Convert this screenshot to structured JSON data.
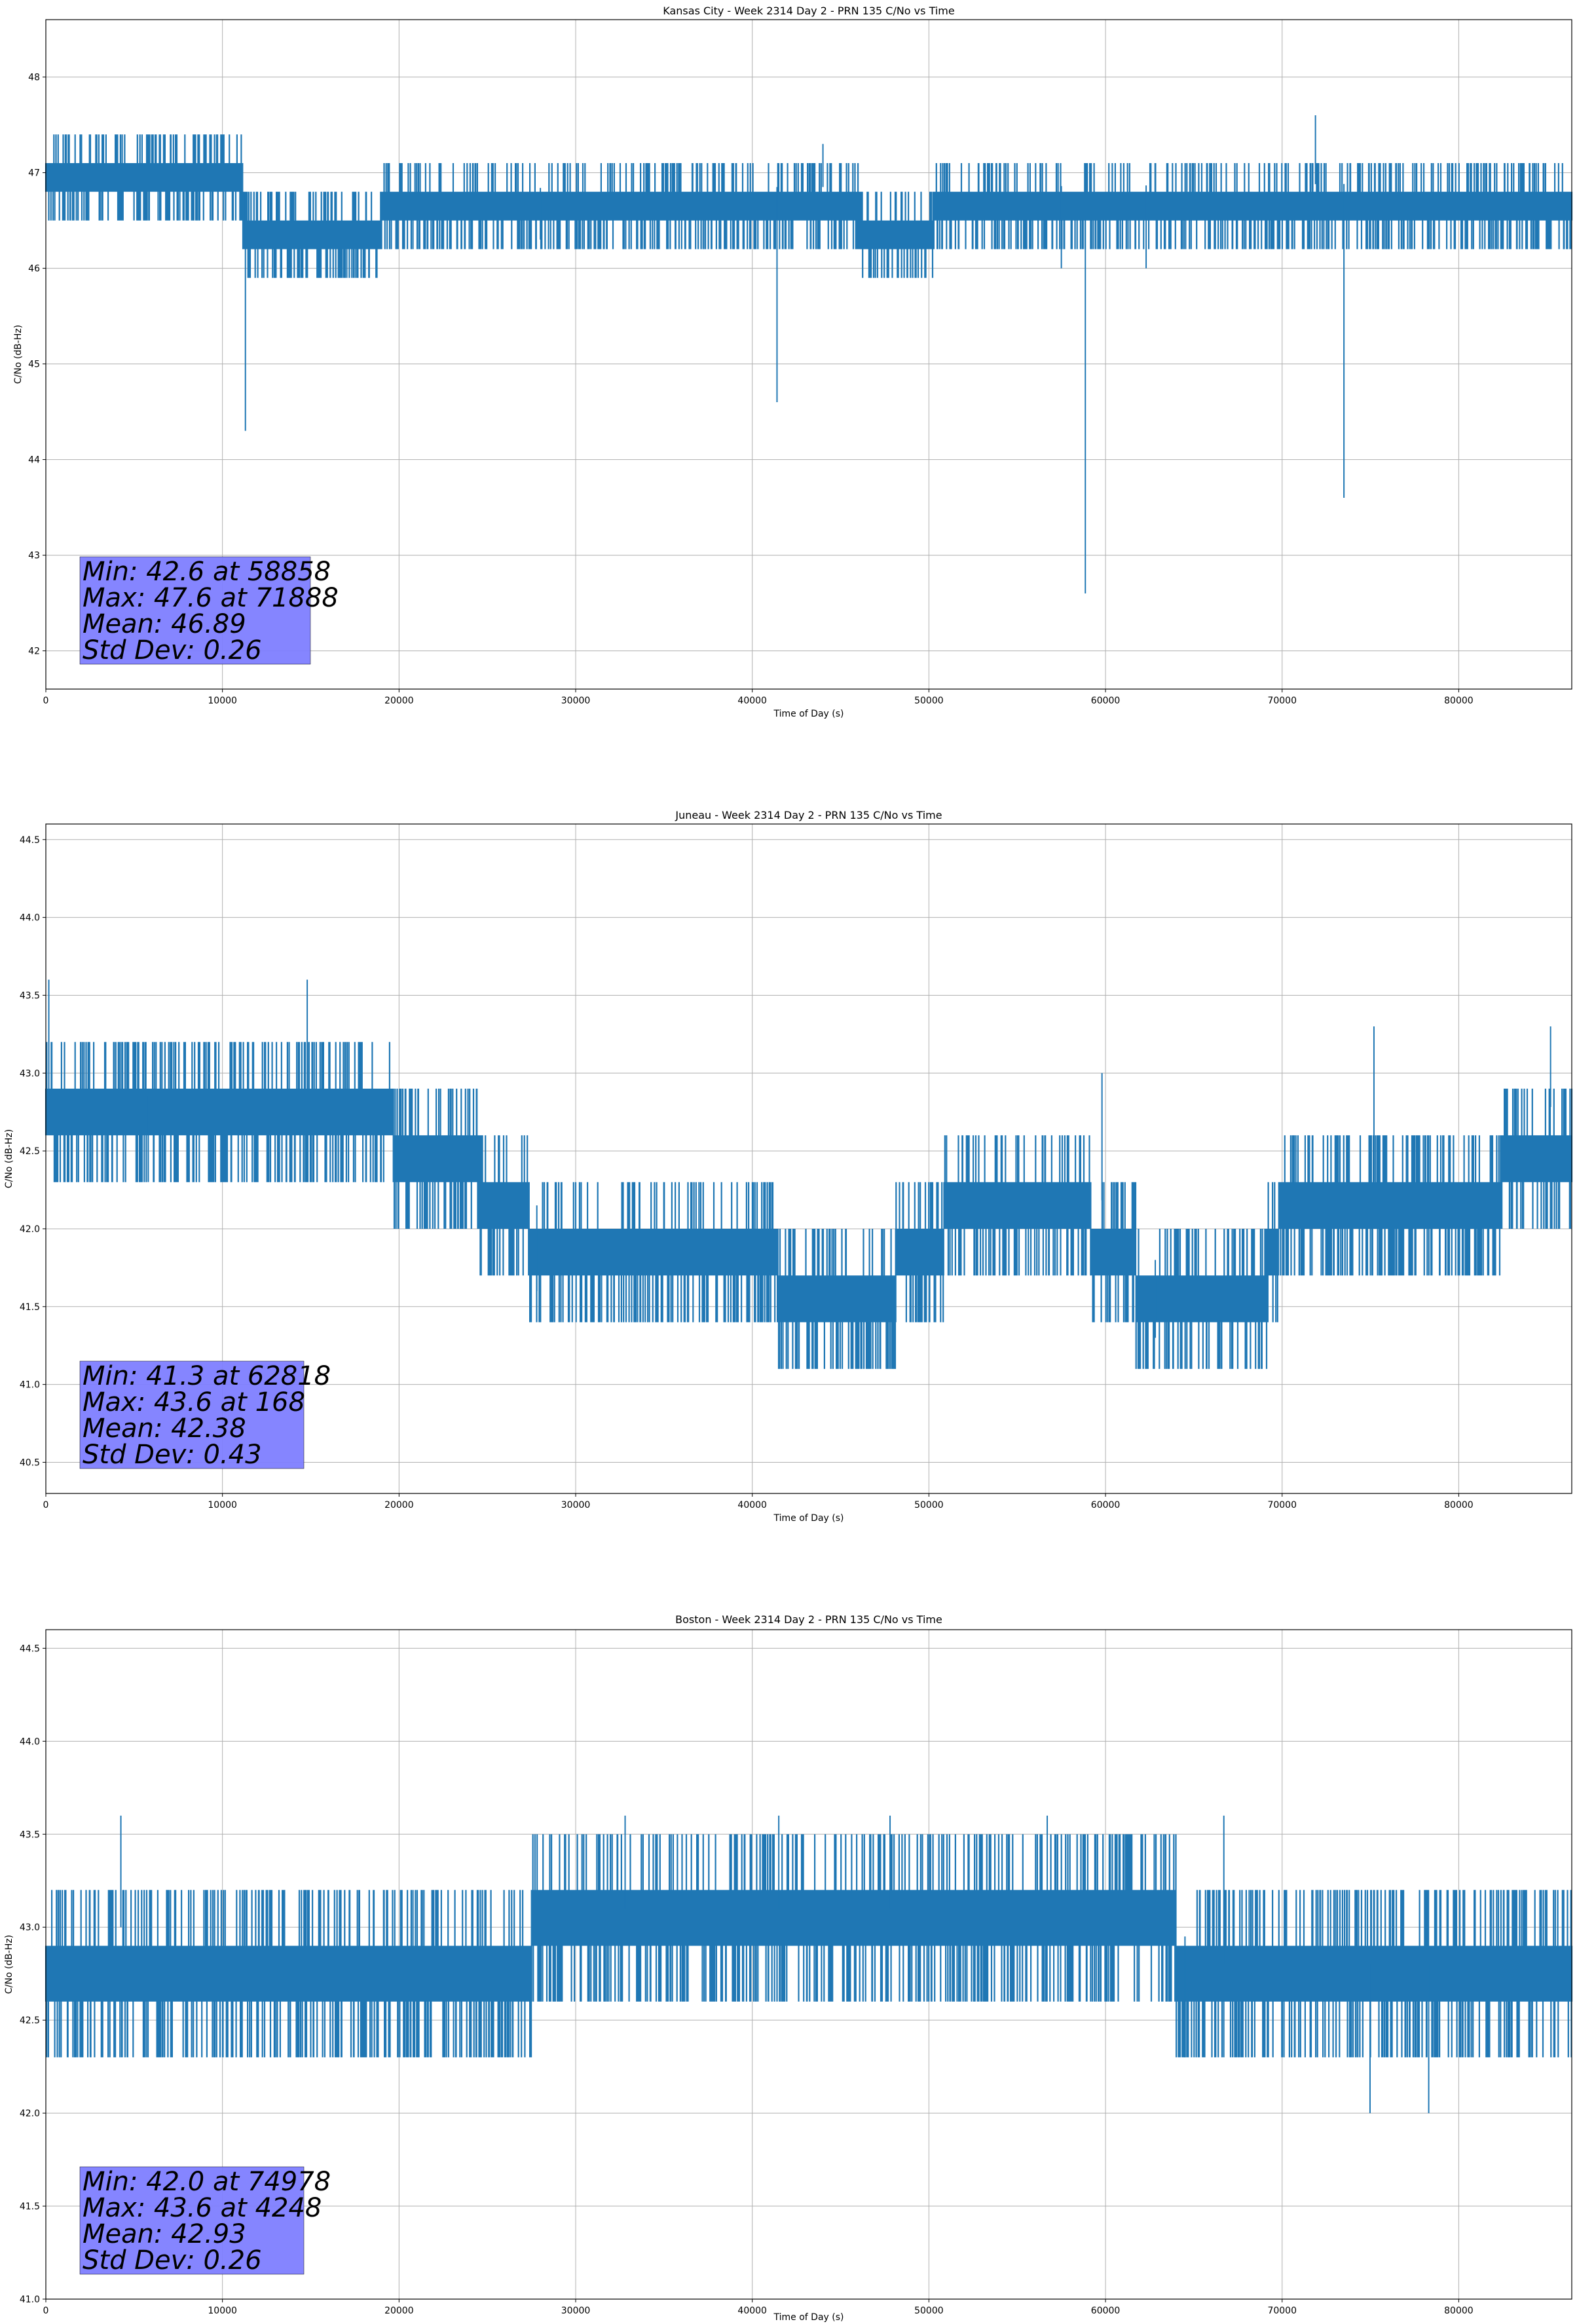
{
  "chart_data": [
    {
      "type": "line",
      "title": "Kansas City - Week 2314 Day 2 - PRN 135 C/No vs Time",
      "xlabel": "Time of Day (s)",
      "ylabel": "C/No (dB-Hz)",
      "xlim": [
        0,
        86400
      ],
      "ylim": [
        41.6,
        48.6
      ],
      "xticks": [
        0,
        10000,
        20000,
        30000,
        40000,
        50000,
        60000,
        70000,
        80000
      ],
      "yticks": [
        42,
        43,
        44,
        45,
        46,
        47,
        48
      ],
      "ytick_labels": [
        "42",
        "43",
        "44",
        "45",
        "46",
        "47",
        "48"
      ],
      "grid": true,
      "color": "#1f77b4",
      "stats": [
        "Min: 42.6 at 58858",
        "Max: 47.6 at 71888",
        "Mean: 46.89",
        "Std Dev: 0.26"
      ],
      "profile": [
        [
          0,
          47.15
        ],
        [
          11000,
          47.1
        ],
        [
          11600,
          46.45
        ],
        [
          18600,
          46.45
        ],
        [
          19200,
          46.8
        ],
        [
          30000,
          46.85
        ],
        [
          45000,
          46.85
        ],
        [
          47000,
          46.5
        ],
        [
          50000,
          46.5
        ],
        [
          50500,
          46.85
        ],
        [
          86400,
          46.9
        ]
      ],
      "band": 0.6,
      "spikes": [
        [
          11300,
          44.3
        ],
        [
          41400,
          44.6
        ],
        [
          58858,
          42.6
        ],
        [
          73500,
          43.6
        ],
        [
          71888,
          47.6
        ],
        [
          62300,
          46.0
        ],
        [
          57500,
          46.0
        ],
        [
          28000,
          46.3
        ],
        [
          44000,
          47.3
        ]
      ]
    },
    {
      "type": "line",
      "title": "Juneau - Week 2314 Day 2 - PRN 135 C/No vs Time",
      "xlabel": "Time of Day (s)",
      "ylabel": "C/No (dB-Hz)",
      "xlim": [
        0,
        86400
      ],
      "ylim": [
        40.3,
        44.6
      ],
      "xticks": [
        0,
        10000,
        20000,
        30000,
        40000,
        50000,
        60000,
        70000,
        80000
      ],
      "yticks": [
        40.5,
        41.0,
        41.5,
        42.0,
        42.5,
        43.0,
        43.5,
        44.0,
        44.5
      ],
      "ytick_labels": [
        "40.5",
        "41.0",
        "41.5",
        "42.0",
        "42.5",
        "43.0",
        "43.5",
        "44.0",
        "44.5"
      ],
      "grid": true,
      "color": "#1f77b4",
      "stats": [
        "Min: 41.3 at 62818",
        "Max: 43.6 at 168",
        "Mean: 42.38",
        "Std Dev: 0.43"
      ],
      "profile": [
        [
          0,
          42.85
        ],
        [
          19500,
          42.85
        ],
        [
          20500,
          42.6
        ],
        [
          26500,
          42.45
        ],
        [
          27500,
          42.15
        ],
        [
          40000,
          42.15
        ],
        [
          42000,
          41.8
        ],
        [
          48000,
          41.8
        ],
        [
          48500,
          42.15
        ],
        [
          55500,
          42.3
        ],
        [
          61000,
          42.15
        ],
        [
          62000,
          41.8
        ],
        [
          69000,
          41.8
        ],
        [
          70000,
          42.3
        ],
        [
          82000,
          42.3
        ],
        [
          83000,
          42.75
        ],
        [
          86400,
          42.8
        ]
      ],
      "band": 0.7,
      "spikes": [
        [
          168,
          43.6
        ],
        [
          14800,
          43.6
        ],
        [
          62818,
          41.3
        ],
        [
          27800,
          41.6
        ],
        [
          5800,
          42.3
        ],
        [
          75200,
          43.3
        ],
        [
          59800,
          43.0
        ],
        [
          85200,
          43.3
        ]
      ]
    },
    {
      "type": "line",
      "title": "Boston - Week 2314 Day 2 - PRN 135 C/No vs Time",
      "xlabel": "Time of Day (s)",
      "ylabel": "C/No (dB-Hz)",
      "xlim": [
        0,
        86400
      ],
      "ylim": [
        41.0,
        44.6
      ],
      "xticks": [
        0,
        10000,
        20000,
        30000,
        40000,
        50000,
        60000,
        70000,
        80000
      ],
      "yticks": [
        41.0,
        41.5,
        42.0,
        42.5,
        43.0,
        43.5,
        44.0,
        44.5
      ],
      "ytick_labels": [
        "41.0",
        "41.5",
        "42.0",
        "42.5",
        "43.0",
        "43.5",
        "44.0",
        "44.5"
      ],
      "grid": true,
      "color": "#1f77b4",
      "stats": [
        "Min: 42.0 at 74978",
        "Max: 43.6 at 4248",
        "Mean: 42.93",
        "Std Dev: 0.26"
      ],
      "profile": [
        [
          0,
          43.0
        ],
        [
          11500,
          43.0
        ],
        [
          12000,
          42.8
        ],
        [
          26500,
          42.8
        ],
        [
          27500,
          43.1
        ],
        [
          64000,
          43.1
        ],
        [
          65000,
          42.8
        ],
        [
          86400,
          42.8
        ]
      ],
      "band": 0.7,
      "spikes": [
        [
          4248,
          43.6
        ],
        [
          74978,
          42.0
        ],
        [
          78300,
          42.0
        ],
        [
          32800,
          43.6
        ],
        [
          41500,
          43.6
        ],
        [
          47800,
          43.6
        ],
        [
          56700,
          43.6
        ],
        [
          64500,
          42.3
        ],
        [
          66700,
          43.6
        ]
      ]
    }
  ]
}
